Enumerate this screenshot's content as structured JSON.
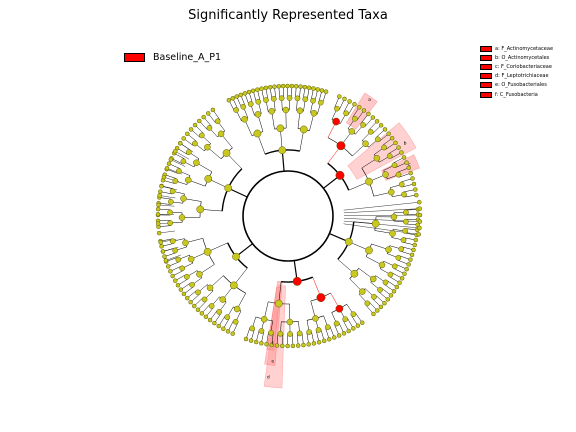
{
  "title": "Significantly Represented Taxa",
  "colors": {
    "enriched": "#ff0000",
    "neutral_node": "#c8c820",
    "node_edge": "#5a5a00",
    "branch": "#000000",
    "highlight": "#ff9999"
  },
  "legend": {
    "group_label": "Baseline_A_P1",
    "clades": [
      {
        "letter": "a",
        "label": "a: F_Actinomycetaceae"
      },
      {
        "letter": "b",
        "label": "b: O_Actinomycetales"
      },
      {
        "letter": "c",
        "label": "c: F_Coriobacteriaceae"
      },
      {
        "letter": "d",
        "label": "d: F_Leptotrichiaceae"
      },
      {
        "letter": "e",
        "label": "e: O_Fusobacteriales"
      },
      {
        "letter": "f",
        "label": "f: C_Fusobacteria"
      }
    ]
  }
}
